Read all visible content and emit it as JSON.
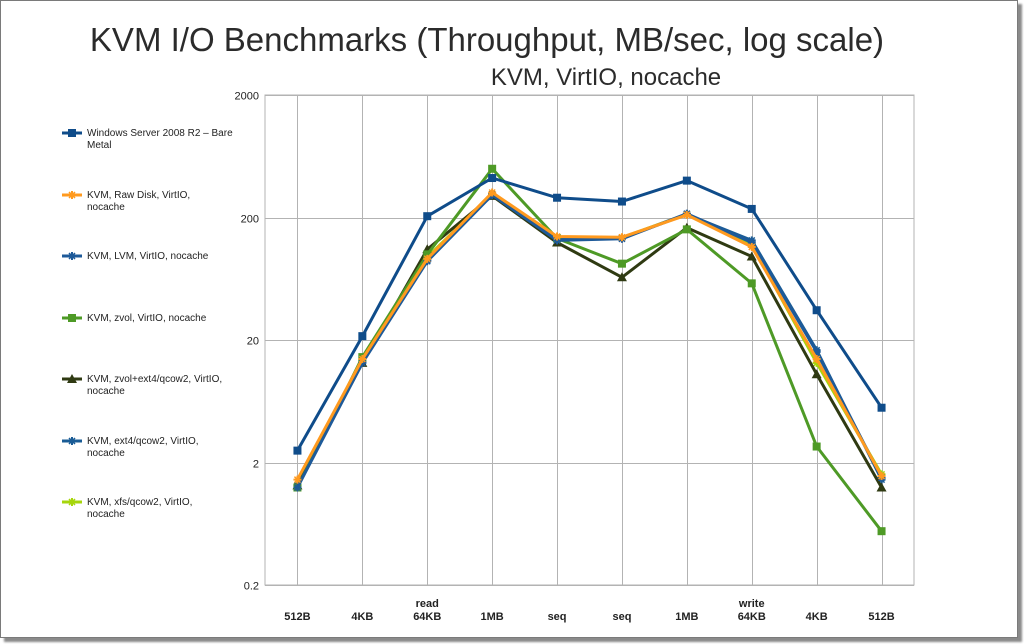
{
  "chart_data": {
    "type": "line",
    "title": "KVM I/O Benchmarks (Throughput, MB/sec, log scale)",
    "subtitle": "KVM, VirtIO, nocache",
    "y_scale": "log",
    "ylim": [
      0.2,
      2000
    ],
    "y_ticks": [
      "2000",
      "200",
      "20",
      "2",
      "0.2"
    ],
    "y_tick_values": [
      2000,
      200,
      20,
      2,
      0.2
    ],
    "grid": true,
    "legend_position": "left",
    "categories": [
      {
        "top": "",
        "bottom": "512B"
      },
      {
        "top": "",
        "bottom": "4KB"
      },
      {
        "top": "read",
        "bottom": "64KB"
      },
      {
        "top": "",
        "bottom": "1MB"
      },
      {
        "top": "",
        "bottom": "seq"
      },
      {
        "top": "",
        "bottom": "seq"
      },
      {
        "top": "",
        "bottom": "1MB"
      },
      {
        "top": "write",
        "bottom": "64KB"
      },
      {
        "top": "",
        "bottom": "4KB"
      },
      {
        "top": "",
        "bottom": "512B"
      }
    ],
    "series": [
      {
        "name": "Windows Server 2008 R2 – Bare Metal",
        "legend_lines": [
          "Windows Server 2008 R2 – Bare",
          "Metal"
        ],
        "color": "#0f4c8a",
        "marker": "square",
        "width": 3,
        "values": [
          2.5,
          21.5,
          205,
          420,
          290,
          270,
          400,
          235,
          35,
          5.6
        ]
      },
      {
        "name": "KVM, Raw Disk, VirtIO, nocache",
        "legend_lines": [
          "KVM, Raw Disk, VirtIO,",
          "nocache"
        ],
        "color": "#ff9a1f",
        "marker": "star",
        "width": 3,
        "values": [
          1.45,
          14,
          92,
          320,
          140,
          138,
          210,
          115,
          14,
          1.55
        ]
      },
      {
        "name": "KVM, LVM, VirtIO, nocache",
        "legend_lines": [
          "KVM, LVM, VirtIO, nocache"
        ],
        "color": "#1e5a99",
        "marker": "star",
        "width": 3,
        "values": [
          1.25,
          13,
          88,
          305,
          130,
          134,
          215,
          125,
          16,
          1.5
        ]
      },
      {
        "name": "KVM, zvol, VirtIO, nocache",
        "legend_lines": [
          "KVM, zvol, VirtIO, nocache"
        ],
        "color": "#4e9a26",
        "marker": "square",
        "width": 3,
        "values": [
          1.25,
          14.5,
          100,
          500,
          135,
          84,
          160,
          58,
          2.7,
          0.55
        ]
      },
      {
        "name": "KVM, zvol+ext4/qcow2, VirtIO, nocache",
        "legend_lines": [
          "KVM, zvol+ext4/qcow2, VirtIO,",
          "nocache"
        ],
        "color": "#2f3a12",
        "marker": "triangle",
        "width": 3,
        "values": [
          1.3,
          13,
          110,
          300,
          125,
          65,
          165,
          96,
          10.5,
          1.25
        ]
      },
      {
        "name": "KVM, ext4/qcow2, VirtIO, nocache",
        "legend_lines": [
          "KVM, ext4/qcow2, VirtIO,",
          "nocache"
        ],
        "color": "#1a5c96",
        "marker": "star",
        "width": 3,
        "values": [
          1.3,
          13.2,
          90,
          310,
          133,
          136,
          212,
          130,
          16.5,
          1.45
        ]
      },
      {
        "name": "KVM, xfs/qcow2, VirtIO, nocache",
        "legend_lines": [
          "KVM, xfs/qcow2, VirtIO,",
          "nocache"
        ],
        "color": "#a6d60c",
        "marker": "star",
        "width": 3,
        "values": [
          1.3,
          13.5,
          95,
          310,
          135,
          137,
          213,
          120,
          13,
          1.6
        ]
      }
    ]
  }
}
